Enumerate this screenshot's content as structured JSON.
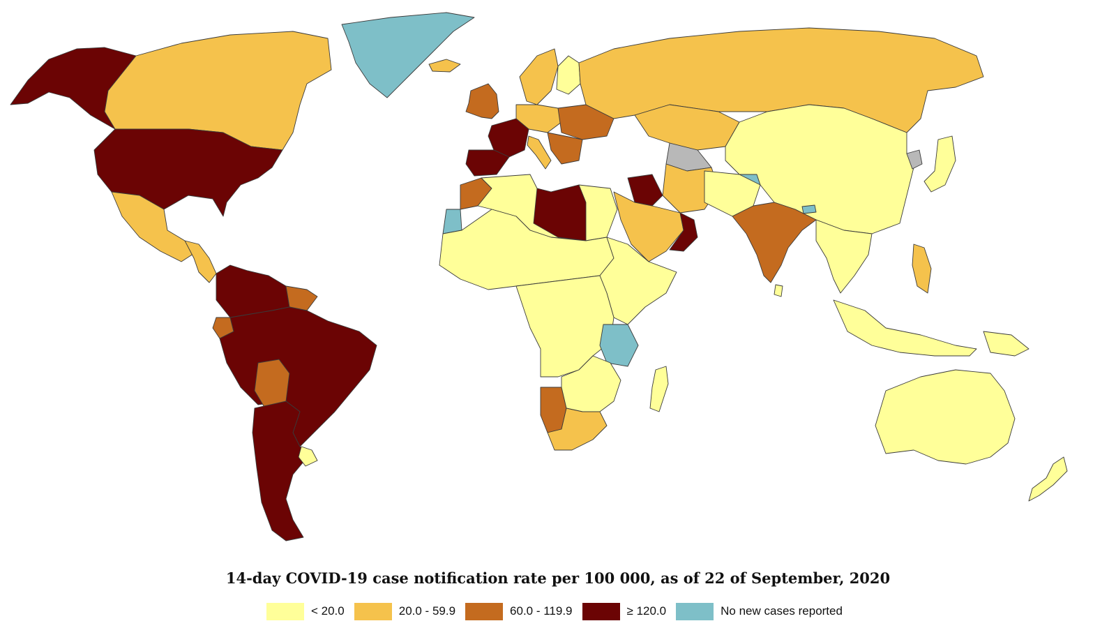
{
  "map": {
    "title": "14-day COVID-19 case notification rate per 100 000, as of 22 of September, 2020",
    "colors": {
      "lt20": "#ffff99",
      "r20_60": "#f5c24c",
      "r60_120": "#c46b1f",
      "ge120": "#6b0404",
      "none": "#7ebfc8",
      "nodata": "#b8b8b8"
    },
    "legend": [
      {
        "label": "< 20.0",
        "color": "#ffff99"
      },
      {
        "label": "20.0 - 59.9",
        "color": "#f5c24c"
      },
      {
        "label": "60.0 - 119.9",
        "color": "#c46b1f"
      },
      {
        "label": "≥ 120.0",
        "color": "#6b0404"
      },
      {
        "label": "No new cases reported",
        "color": "#7ebfc8"
      }
    ],
    "regions": [
      {
        "name": "alaska",
        "class": "ge120"
      },
      {
        "name": "canada",
        "class": "r20_60"
      },
      {
        "name": "greenland",
        "class": "none"
      },
      {
        "name": "usa",
        "class": "ge120"
      },
      {
        "name": "mexico",
        "class": "r20_60"
      },
      {
        "name": "central-america",
        "class": "r20_60"
      },
      {
        "name": "colombia-venezuela",
        "class": "ge120"
      },
      {
        "name": "guianas",
        "class": "r60_120"
      },
      {
        "name": "ecuador",
        "class": "r60_120"
      },
      {
        "name": "brazil-peru",
        "class": "ge120"
      },
      {
        "name": "bolivia",
        "class": "r60_120"
      },
      {
        "name": "argentina-chile",
        "class": "ge120"
      },
      {
        "name": "uruguay",
        "class": "lt20"
      },
      {
        "name": "iceland",
        "class": "r20_60"
      },
      {
        "name": "uk-ireland",
        "class": "r60_120"
      },
      {
        "name": "scandinavia",
        "class": "r20_60"
      },
      {
        "name": "finland",
        "class": "lt20"
      },
      {
        "name": "france",
        "class": "ge120"
      },
      {
        "name": "iberia",
        "class": "ge120"
      },
      {
        "name": "central-europe",
        "class": "r20_60"
      },
      {
        "name": "eastern-europe",
        "class": "r60_120"
      },
      {
        "name": "balkans",
        "class": "r60_120"
      },
      {
        "name": "italy",
        "class": "r20_60"
      },
      {
        "name": "russia",
        "class": "r20_60"
      },
      {
        "name": "kazakhstan",
        "class": "r20_60"
      },
      {
        "name": "turkmenistan-uzbekistan",
        "class": "nodata"
      },
      {
        "name": "mongolia-china",
        "class": "lt20"
      },
      {
        "name": "tajikistan",
        "class": "none"
      },
      {
        "name": "north-korea",
        "class": "nodata"
      },
      {
        "name": "japan-korea",
        "class": "lt20"
      },
      {
        "name": "iran",
        "class": "r20_60"
      },
      {
        "name": "saudi-arabia",
        "class": "r20_60"
      },
      {
        "name": "iraq",
        "class": "ge120"
      },
      {
        "name": "oman",
        "class": "ge120"
      },
      {
        "name": "afghanistan-pakistan",
        "class": "lt20"
      },
      {
        "name": "india",
        "class": "r60_120"
      },
      {
        "name": "sri-lanka",
        "class": "lt20"
      },
      {
        "name": "bhutan",
        "class": "none"
      },
      {
        "name": "southeast-asia",
        "class": "lt20"
      },
      {
        "name": "philippines",
        "class": "r20_60"
      },
      {
        "name": "indonesia",
        "class": "lt20"
      },
      {
        "name": "papua-new-guinea",
        "class": "lt20"
      },
      {
        "name": "australia",
        "class": "lt20"
      },
      {
        "name": "new-zealand",
        "class": "lt20"
      },
      {
        "name": "morocco",
        "class": "r60_120"
      },
      {
        "name": "western-sahara",
        "class": "none"
      },
      {
        "name": "north-africa",
        "class": "lt20"
      },
      {
        "name": "libya",
        "class": "ge120"
      },
      {
        "name": "sahel-west-africa",
        "class": "lt20"
      },
      {
        "name": "central-africa",
        "class": "lt20"
      },
      {
        "name": "east-africa",
        "class": "lt20"
      },
      {
        "name": "tanzania",
        "class": "none"
      },
      {
        "name": "namibia",
        "class": "r60_120"
      },
      {
        "name": "southern-africa",
        "class": "lt20"
      },
      {
        "name": "south-africa",
        "class": "r20_60"
      },
      {
        "name": "madagascar",
        "class": "lt20"
      }
    ]
  }
}
